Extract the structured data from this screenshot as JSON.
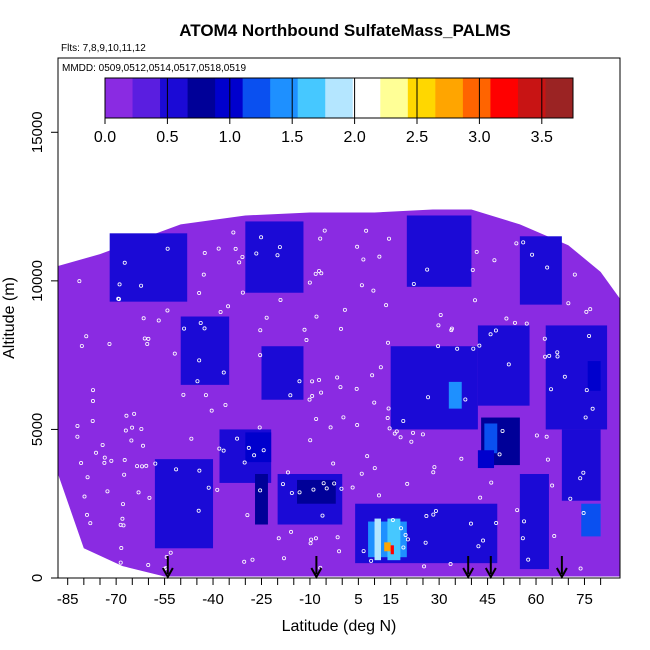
{
  "chart_data": {
    "type": "heatmap",
    "title": "ATOM4 Northbound SulfateMass_PALMS",
    "flights_label": "Flts: 7,8,9,10,11,12",
    "dates_label": "MMDD: 0509,0512,0514,0517,0518,0519",
    "xlabel": "Latitude (deg N)",
    "ylabel": "Altitude (m)",
    "xlim": [
      -88,
      86
    ],
    "ylim": [
      0,
      17500
    ],
    "x_ticks": [
      -85,
      -70,
      -55,
      -40,
      -25,
      -10,
      5,
      15,
      30,
      45,
      60,
      75
    ],
    "y_ticks": [
      0,
      5000,
      10000,
      15000
    ],
    "colorbar": {
      "min": 0,
      "max": 3.75,
      "ticks": [
        0.0,
        0.5,
        1.0,
        1.5,
        2.0,
        2.5,
        3.0,
        3.5
      ],
      "tick_labels": [
        "0.0",
        "0.5",
        "1.0",
        "1.5",
        "2.0",
        "2.5",
        "3.0",
        "3.5"
      ],
      "colors": [
        "#8a2be2",
        "#5a1ee0",
        "#1b0ad6",
        "#000098",
        "#0000cd",
        "#0a50f0",
        "#1e90ff",
        "#46c8ff",
        "#b4e6ff",
        "#ffffff",
        "#ffff96",
        "#ffd700",
        "#ffa500",
        "#ff6400",
        "#ff0000",
        "#c81414",
        "#9b2323"
      ]
    },
    "coverage_top": [
      [
        -88,
        10500
      ],
      [
        -75,
        10900
      ],
      [
        -60,
        11500
      ],
      [
        -50,
        11900
      ],
      [
        -30,
        12200
      ],
      [
        -10,
        12300
      ],
      [
        10,
        12300
      ],
      [
        28,
        12400
      ],
      [
        40,
        12400
      ],
      [
        55,
        11900
      ],
      [
        70,
        11200
      ],
      [
        80,
        10300
      ],
      [
        86,
        9400
      ]
    ],
    "coverage_bottom": [
      [
        -88,
        3500
      ],
      [
        -80,
        1000
      ],
      [
        -68,
        400
      ],
      [
        -55,
        50
      ],
      [
        86,
        50
      ]
    ],
    "cells": [
      {
        "lat": [
          -72,
          -48
        ],
        "alt": [
          9300,
          11600
        ],
        "v": 0.55
      },
      {
        "lat": [
          -30,
          -12
        ],
        "alt": [
          9600,
          12000
        ],
        "v": 0.45
      },
      {
        "lat": [
          20,
          40
        ],
        "alt": [
          9800,
          12200
        ],
        "v": 0.6
      },
      {
        "lat": [
          55,
          68
        ],
        "alt": [
          9200,
          11500
        ],
        "v": 0.55
      },
      {
        "lat": [
          -50,
          -35
        ],
        "alt": [
          6500,
          8800
        ],
        "v": 0.5
      },
      {
        "lat": [
          -25,
          -12
        ],
        "alt": [
          6000,
          7800
        ],
        "v": 0.45
      },
      {
        "lat": [
          15,
          42
        ],
        "alt": [
          5000,
          7800
        ],
        "v": 0.5
      },
      {
        "lat": [
          42,
          58
        ],
        "alt": [
          5800,
          8500
        ],
        "v": 0.6
      },
      {
        "lat": [
          63,
          82
        ],
        "alt": [
          5000,
          8500
        ],
        "v": 0.55
      },
      {
        "lat": [
          -58,
          -40
        ],
        "alt": [
          1000,
          4000
        ],
        "v": 0.6
      },
      {
        "lat": [
          -38,
          -22
        ],
        "alt": [
          3200,
          5000
        ],
        "v": 0.6
      },
      {
        "lat": [
          -20,
          0
        ],
        "alt": [
          1800,
          3500
        ],
        "v": 0.5
      },
      {
        "lat": [
          4,
          48
        ],
        "alt": [
          500,
          2500
        ],
        "v": 0.65
      },
      {
        "lat": [
          43,
          55
        ],
        "alt": [
          3800,
          5400
        ],
        "v": 0.7
      },
      {
        "lat": [
          55,
          64
        ],
        "alt": [
          300,
          3500
        ],
        "v": 0.55
      },
      {
        "lat": [
          68,
          80
        ],
        "alt": [
          2600,
          5000
        ],
        "v": 0.6
      },
      {
        "lat": [
          -30,
          -22
        ],
        "alt": [
          3900,
          4900
        ],
        "v": 1.05
      },
      {
        "lat": [
          -27,
          -23
        ],
        "alt": [
          1800,
          3500
        ],
        "v": 0.85
      },
      {
        "lat": [
          -14,
          -2
        ],
        "alt": [
          2500,
          3300
        ],
        "v": 0.8
      },
      {
        "lat": [
          33,
          37
        ],
        "alt": [
          5700,
          6600
        ],
        "v": 1.45
      },
      {
        "lat": [
          44,
          48
        ],
        "alt": [
          4200,
          5200
        ],
        "v": 1.3
      },
      {
        "lat": [
          42,
          47
        ],
        "alt": [
          3700,
          4300
        ],
        "v": 0.95
      },
      {
        "lat": [
          74,
          80
        ],
        "alt": [
          1400,
          2500
        ],
        "v": 1.25
      },
      {
        "lat": [
          76,
          80
        ],
        "alt": [
          6300,
          7300
        ],
        "v": 1.0
      },
      {
        "lat": [
          8,
          20
        ],
        "alt": [
          700,
          1900
        ],
        "v": 1.35
      },
      {
        "lat": [
          10,
          12
        ],
        "alt": [
          600,
          2000
        ],
        "v": 1.85
      },
      {
        "lat": [
          14,
          18
        ],
        "alt": [
          600,
          2000
        ],
        "v": 1.75
      },
      {
        "lat": [
          13,
          15
        ],
        "alt": [
          900,
          1200
        ],
        "v": 2.7
      },
      {
        "lat": [
          15,
          16
        ],
        "alt": [
          800,
          1100
        ],
        "v": 3.1
      }
    ],
    "arrows_lat": [
      -54,
      -8,
      39,
      46,
      68
    ]
  }
}
